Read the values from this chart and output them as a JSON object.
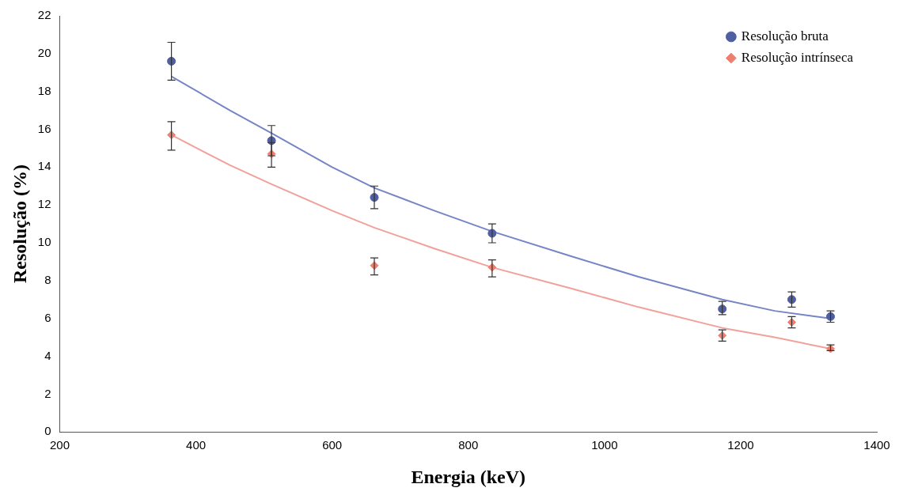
{
  "chart_data": {
    "type": "scatter",
    "xlabel": "Energia (keV)",
    "ylabel": "Resolução (%)",
    "xlim": [
      200,
      1400
    ],
    "xticks": [
      200,
      400,
      600,
      800,
      1000,
      1200,
      1400
    ],
    "ylim": [
      0,
      22
    ],
    "yticks": [
      0,
      2,
      4,
      6,
      8,
      10,
      12,
      14,
      16,
      18,
      20,
      22
    ],
    "grid": false,
    "legend": "top right",
    "series": [
      {
        "name": "Resolução bruta",
        "type": "scatter",
        "marker": "circle",
        "color": "#4f5f9f",
        "x": [
          364,
          511,
          662,
          835,
          1173,
          1275,
          1332
        ],
        "values": [
          19.6,
          15.4,
          12.4,
          10.5,
          6.5,
          7.0,
          6.1
        ],
        "errors": [
          [
            18.6,
            20.6
          ],
          [
            14.6,
            16.2
          ],
          [
            11.8,
            13.0
          ],
          [
            10.0,
            11.0
          ],
          [
            6.2,
            6.9
          ],
          [
            6.6,
            7.4
          ],
          [
            5.8,
            6.4
          ]
        ]
      },
      {
        "name": "Resolução intrínseca",
        "type": "scatter",
        "marker": "diamond",
        "color": "#ee7f6f",
        "x": [
          364,
          511,
          662,
          835,
          1173,
          1275,
          1332
        ],
        "values": [
          15.7,
          14.7,
          8.8,
          8.7,
          5.1,
          5.8,
          4.4
        ],
        "errors": [
          [
            14.9,
            16.4
          ],
          [
            14.0,
            15.3
          ],
          [
            8.3,
            9.2
          ],
          [
            8.2,
            9.1
          ],
          [
            4.8,
            5.4
          ],
          [
            5.5,
            6.1
          ],
          [
            4.3,
            4.6
          ]
        ]
      },
      {
        "type": "line",
        "marker": "none",
        "color": "#7585c5",
        "x": [
          364,
          450,
          511,
          600,
          662,
          750,
          835,
          950,
          1050,
          1173,
          1250,
          1332
        ],
        "values": [
          18.8,
          17.0,
          15.8,
          14.0,
          12.9,
          11.7,
          10.6,
          9.3,
          8.2,
          7.0,
          6.4,
          6.0
        ]
      },
      {
        "type": "line",
        "marker": "none",
        "color": "#f2a09a",
        "x": [
          364,
          450,
          511,
          600,
          662,
          750,
          835,
          950,
          1050,
          1173,
          1250,
          1332
        ],
        "values": [
          15.7,
          14.1,
          13.1,
          11.7,
          10.8,
          9.7,
          8.7,
          7.6,
          6.6,
          5.5,
          5.0,
          4.4
        ]
      }
    ]
  }
}
